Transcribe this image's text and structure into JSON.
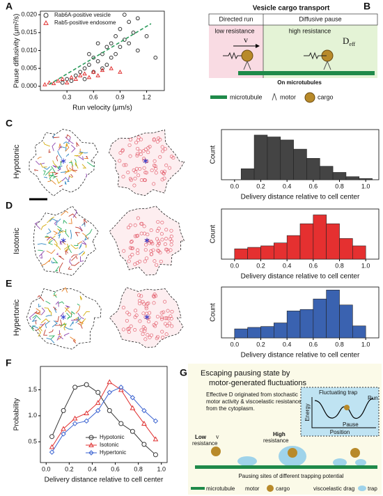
{
  "panel_labels": [
    "A",
    "B",
    "C",
    "D",
    "E",
    "F",
    "G"
  ],
  "row_labels": [
    "Hypotonic",
    "Isotonic",
    "Hypertonic"
  ],
  "panel_b": {
    "title": "Vesicle cargo transport",
    "left_header": "Directed run",
    "right_header": "Diffusive pause",
    "low": "low resistance",
    "high": "high resistance",
    "v": "v",
    "deff_main": "D",
    "deff_sub": "eff",
    "track": "On microtubules",
    "legend": [
      "microtubule",
      "motor",
      "cargo"
    ]
  },
  "panel_g": {
    "title": [
      "Escaping pausing state by",
      "motor-generated fluctuations"
    ],
    "text": [
      "Effective D originated from stochastic",
      "motor activity & viscoelastic resistance",
      "from the cytoplasm."
    ],
    "inset": {
      "trap": "Fluctuating trap",
      "run": "Run",
      "energy": "Energy",
      "pause": "Pause",
      "position": "Position"
    },
    "low": [
      "Low",
      "resistance"
    ],
    "v": "v",
    "high": [
      "High",
      "resistance"
    ],
    "sites": "Pausing sites of different trapping potential",
    "legend": [
      "microtubule",
      "motor",
      "cargo",
      "viscoelastic drag",
      "trap"
    ]
  },
  "chart_data": [
    {
      "type": "scatter",
      "xlabel": "Run velocity (μm/s)",
      "ylabel": "Pause diffusivity (μm²/s)",
      "xlim": [
        0,
        1.4
      ],
      "ylim": [
        -0.0012,
        0.021
      ],
      "xticks": [
        0.3,
        0.6,
        0.9,
        1.2
      ],
      "yticks": [
        {
          "value": 0,
          "label": "0.000"
        },
        0.005,
        {
          "value": 0.01,
          "label": "0.010"
        },
        0.015,
        {
          "value": 0.02,
          "label": "0.020"
        }
      ],
      "series": [
        {
          "name": "Rab6A-positive vesicle",
          "color": "#333333",
          "marker": "circle",
          "x": [
            0.25,
            0.3,
            0.35,
            0.4,
            0.45,
            0.5,
            0.5,
            0.55,
            0.6,
            0.6,
            0.65,
            0.7,
            0.7,
            0.75,
            0.75,
            0.8,
            0.8,
            0.85,
            0.85,
            0.9,
            0.9,
            0.95,
            1.0,
            1.0,
            1.05,
            1.1,
            1.1,
            1.2,
            1.3,
            0.65,
            0.95,
            0.55
          ],
          "values": [
            0.001,
            0.002,
            0.0015,
            0.003,
            0.004,
            0.005,
            0.002,
            0.006,
            0.004,
            0.008,
            0.007,
            0.009,
            0.005,
            0.011,
            0.006,
            0.012,
            0.008,
            0.014,
            0.009,
            0.016,
            0.011,
            0.013,
            0.018,
            0.012,
            0.015,
            0.019,
            0.01,
            0.014,
            0.008,
            0.012,
            0.02,
            0.009
          ]
        },
        {
          "name": "Rab5-positive endosome",
          "color": "#e03030",
          "marker": "triangle",
          "x": [
            0.05,
            0.1,
            0.15,
            0.2,
            0.25,
            0.3,
            0.35,
            0.4,
            0.45,
            0.5,
            0.55,
            0.6,
            0.65,
            0.7,
            0.8,
            0.9
          ],
          "values": [
            0.0005,
            0.001,
            0.0008,
            0.0015,
            0.002,
            0.001,
            0.0025,
            0.002,
            0.003,
            0.0035,
            0.0025,
            0.004,
            0.003,
            0.0045,
            0.005,
            0.004
          ]
        }
      ],
      "fit": {
        "color": "#2a9a5a",
        "x": [
          0.1,
          1.25
        ],
        "values": [
          0.0005,
          0.0175
        ]
      }
    },
    {
      "type": "histogram",
      "xlabel": "Delivery distance relative to cell center",
      "ylabel": "Count",
      "color": "#444444",
      "bins": [
        0.05,
        0.15,
        0.25,
        0.35,
        0.45,
        0.55,
        0.65,
        0.75,
        0.85,
        0.95,
        1.05
      ],
      "values": [
        18,
        73,
        70,
        65,
        50,
        35,
        22,
        12,
        5,
        2
      ],
      "xlim": [
        -0.1,
        1.1
      ],
      "ylim": [
        0,
        82
      ],
      "xticks": [
        {
          "value": 0,
          "label": "0.0"
        },
        0.2,
        0.4,
        0.6,
        0.8,
        {
          "value": 1,
          "label": "1.0"
        }
      ]
    },
    {
      "type": "histogram",
      "xlabel": "Delivery distance relative to cell center",
      "ylabel": "Count",
      "color": "#e53030",
      "bins": [
        0,
        0.1,
        0.2,
        0.3,
        0.4,
        0.5,
        0.6,
        0.7,
        0.8,
        0.9,
        1.0
      ],
      "values": [
        35,
        40,
        45,
        55,
        80,
        120,
        150,
        120,
        70,
        45
      ],
      "xlim": [
        -0.1,
        1.1
      ],
      "ylim": [
        0,
        170
      ],
      "xticks": [
        {
          "value": 0,
          "label": "0.0"
        },
        0.2,
        0.4,
        0.6,
        0.8,
        {
          "value": 1,
          "label": "1.0"
        }
      ]
    },
    {
      "type": "histogram",
      "xlabel": "Delivery distance relative to cell center",
      "ylabel": "Count",
      "color": "#3a62b0",
      "bins": [
        0,
        0.1,
        0.2,
        0.3,
        0.4,
        0.5,
        0.6,
        0.7,
        0.8,
        0.9,
        1.0
      ],
      "values": [
        30,
        35,
        38,
        50,
        90,
        95,
        130,
        160,
        110,
        40
      ],
      "xlim": [
        -0.1,
        1.1
      ],
      "ylim": [
        0,
        170
      ],
      "xticks": [
        {
          "value": 0,
          "label": "0.0"
        },
        0.2,
        0.4,
        0.6,
        0.8,
        {
          "value": 1,
          "label": "1.0"
        }
      ]
    },
    {
      "type": "line",
      "xlabel": "Delivery distance relative to cell center",
      "ylabel": "Probability",
      "legend": "lower-center",
      "x": [
        0.05,
        0.15,
        0.25,
        0.35,
        0.45,
        0.55,
        0.65,
        0.75,
        0.85,
        0.95
      ],
      "xlim": [
        -0.05,
        1.05
      ],
      "ylim": [
        0.1,
        1.95
      ],
      "xticks": [
        {
          "value": 0,
          "label": "0.0"
        },
        0.2,
        0.4,
        0.6,
        0.8,
        {
          "value": 1,
          "label": "1.0"
        }
      ],
      "yticks": [
        0.5,
        {
          "value": 1,
          "label": "1.0"
        },
        1.5
      ],
      "series": [
        {
          "name": "Hypotonic",
          "color": "#333333",
          "marker": "circle",
          "values": [
            0.6,
            1.1,
            1.55,
            1.6,
            1.45,
            1.1,
            0.85,
            0.7,
            0.45,
            0.25
          ]
        },
        {
          "name": "Isotonic",
          "color": "#e03030",
          "marker": "triangle",
          "values": [
            0.4,
            0.75,
            0.95,
            1.05,
            1.25,
            1.65,
            1.5,
            1.15,
            0.85,
            0.55
          ]
        },
        {
          "name": "Hypertonic",
          "color": "#3a62d0",
          "marker": "diamond",
          "values": [
            0.3,
            0.65,
            0.85,
            0.9,
            1.1,
            1.45,
            1.55,
            1.35,
            1.1,
            0.9
          ]
        }
      ]
    }
  ]
}
